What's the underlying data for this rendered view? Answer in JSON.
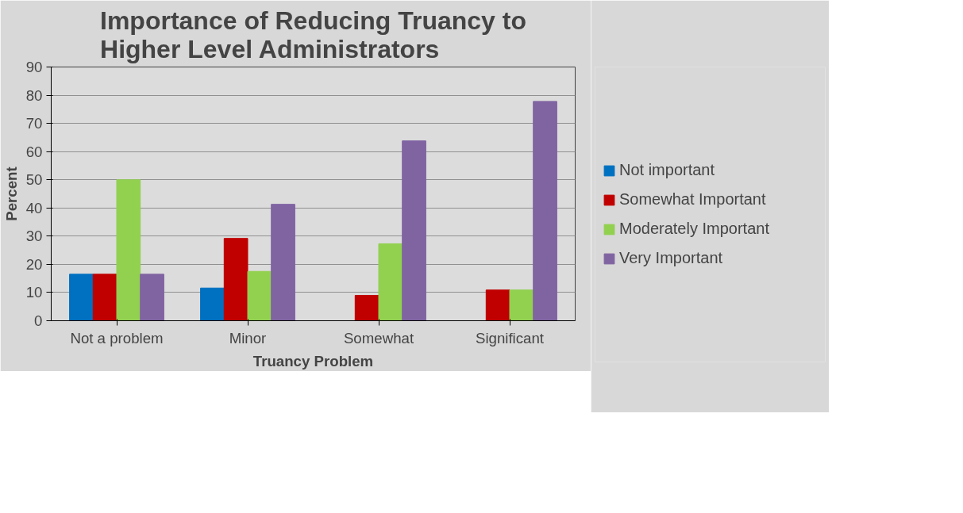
{
  "chart_data": {
    "type": "bar",
    "title": "Importance of Reducing Truancy to Higher Level Administrators",
    "xlabel": "Truancy Problem",
    "ylabel": "Percent",
    "categories": [
      "Not a problem",
      "Minor",
      "Somewhat",
      "Significant"
    ],
    "series": [
      {
        "name": "Not important",
        "color": "#0070c0",
        "values": [
          16.5,
          11.6,
          0,
          0
        ]
      },
      {
        "name": "Somewhat Important",
        "color": "#c00000",
        "values": [
          16.5,
          29.2,
          9.0,
          10.9
        ]
      },
      {
        "name": "Moderately Important",
        "color": "#92d050",
        "values": [
          50,
          17.5,
          27.3,
          10.9
        ]
      },
      {
        "name": "Very Important",
        "color": "#8064a2",
        "values": [
          16.5,
          41.3,
          63.8,
          77.8
        ]
      }
    ],
    "ylim": [
      0,
      90
    ],
    "yticks": [
      0,
      10,
      20,
      30,
      40,
      50,
      60,
      70,
      80,
      90
    ],
    "grid": "y",
    "legend": "right"
  }
}
